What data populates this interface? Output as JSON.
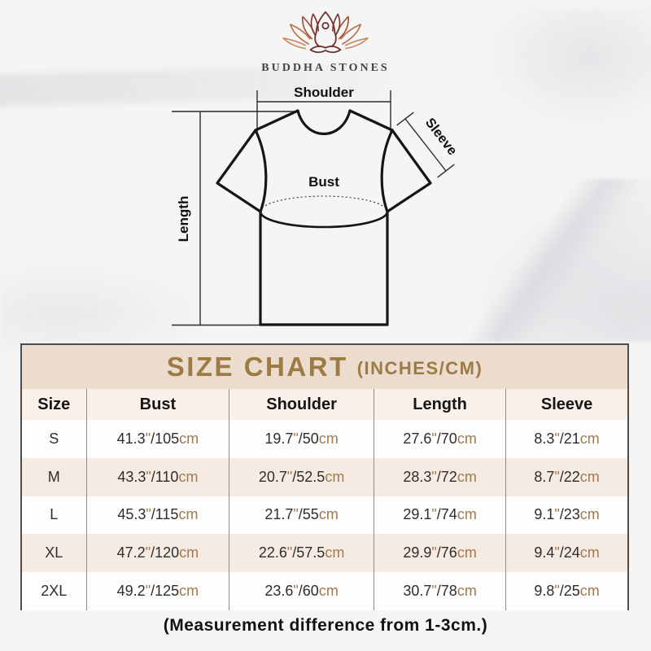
{
  "brand": {
    "name": "BUDDHA STONES"
  },
  "diagram": {
    "shoulder_label": "Shoulder",
    "sleeve_label": "Sleeve",
    "bust_label": "Bust",
    "length_label": "Length"
  },
  "table": {
    "title": "SIZE CHART",
    "subtitle": "(INCHES/CM)",
    "columns": [
      "Size",
      "Bust",
      "Shoulder",
      "Length",
      "Sleeve"
    ],
    "rows": [
      {
        "size": "S",
        "cells": [
          "41.3\"/105cm",
          "19.7\"/50cm",
          "27.6\"/70cm",
          "8.3\"/21cm"
        ]
      },
      {
        "size": "M",
        "cells": [
          "43.3\"/110cm",
          "20.7\"/52.5cm",
          "28.3\"/72cm",
          "8.7\"/22cm"
        ]
      },
      {
        "size": "L",
        "cells": [
          "45.3\"/115cm",
          "21.7\"/55cm",
          "29.1\"/74cm",
          "9.1\"/23cm"
        ]
      },
      {
        "size": "XL",
        "cells": [
          "47.2\"/120cm",
          "22.6\"/57.5cm",
          "29.9\"/76cm",
          "9.4\"/24cm"
        ]
      },
      {
        "size": "2XL",
        "cells": [
          "49.2\"/125cm",
          "23.6\"/60cm",
          "30.7\"/78cm",
          "9.8\"/25cm"
        ]
      }
    ]
  },
  "note": "(Measurement difference from 1-3cm.)",
  "colors": {
    "title_gold": "#9c7b45",
    "unit_brown": "#a07a4e",
    "band_beige": "#ebdcce",
    "row_beige": "#f6ebe3",
    "header_cream": "#f9f0ea",
    "logo_maroon": "#6e2b26",
    "logo_rust": "#b5613e"
  }
}
